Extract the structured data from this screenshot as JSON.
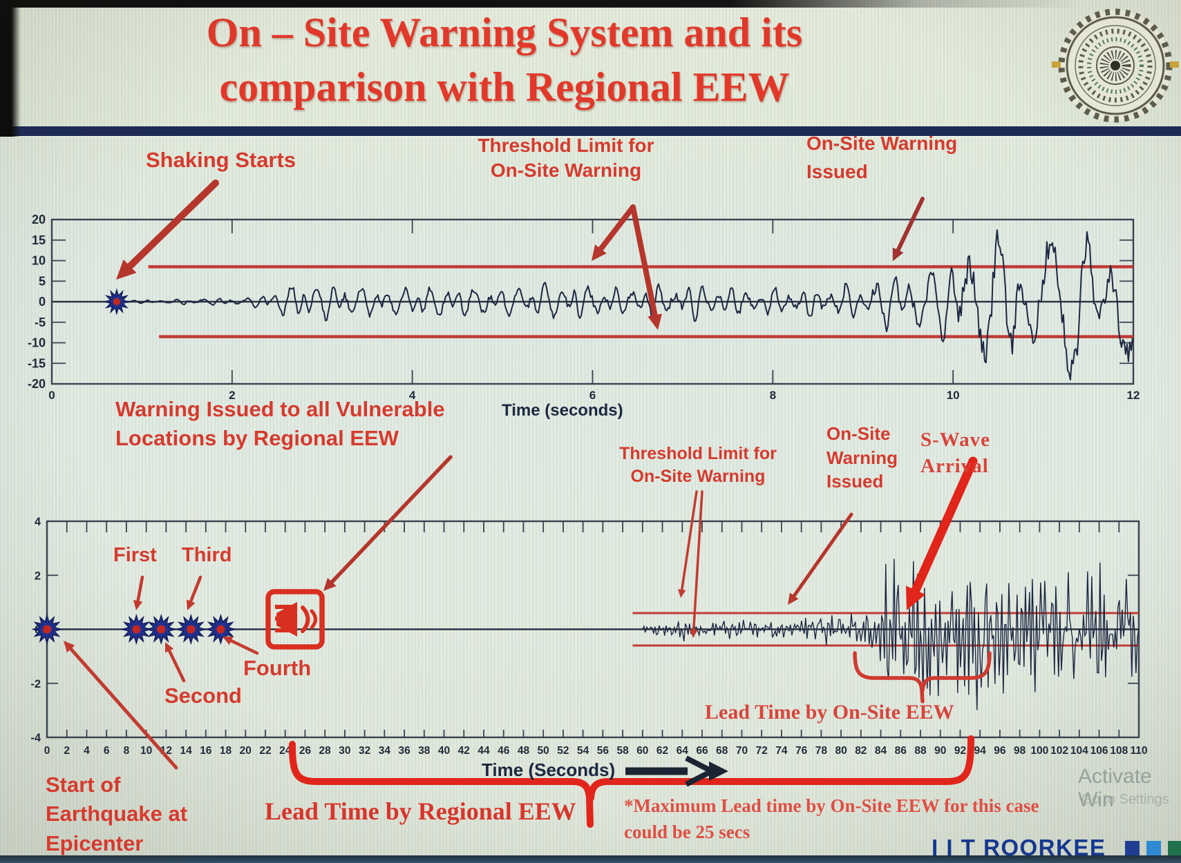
{
  "title": {
    "line1": "On – Site Warning System and its",
    "line2": "comparison with Regional EEW"
  },
  "logo": {
    "name": "IIT Roorkee emblem"
  },
  "colors": {
    "title_red": "#e2382a",
    "annotation_red": "#d63a2e",
    "serif_red": "#d8443c",
    "threshold_red": "#c13b36",
    "bright_red": "#e1251b",
    "arrow_dark_red": "#aa372e",
    "waveform_navy": "#1c2742",
    "marker_blue": "#20318f",
    "marker_center_red": "#c4271f",
    "axis_navy": "#1e2a38",
    "brand_navy": "#16388f",
    "brand_squares": [
      "#1f3e92",
      "#2e8ad2",
      "#20714b"
    ]
  },
  "chart1": {
    "shaking": "Shaking Starts",
    "threshold_line1": "Threshold Limit for",
    "threshold_line2": "On-Site Warning",
    "issued_line1": "On-Site Warning",
    "issued_line2": "Issued",
    "xlabel": "Time (seconds)"
  },
  "chart2": {
    "vuln_line1": "Warning Issued to all Vulnerable",
    "vuln_line2": "Locations by Regional EEW",
    "first": "First",
    "second": "Second",
    "third": "Third",
    "fourth": "Fourth",
    "threshold_line1": "Threshold Limit for",
    "threshold_line2": "On-Site Warning",
    "issued_line1": "On-Site",
    "issued_line2": "Warning",
    "issued_line3": "Issued",
    "swave_line1": "S-Wave",
    "swave_line2": "Arrival",
    "lead_onsite": "Lead Time by On-Site EEW",
    "lead_regional": "Lead Time by Regional EEW",
    "maximum_line1": "*Maximum Lead time by On-Site EEW for this case",
    "maximum_line2": "could be 25 secs",
    "start_line1": "Start of",
    "start_line2": "Earthquake at",
    "start_line3": "Epicenter",
    "xlabel": "Time (Seconds)"
  },
  "footer": {
    "brand": "I I T ROORKEE",
    "watermark_line1": "Activate Win",
    "watermark_line2": "Go to Settings"
  },
  "chart_data": [
    {
      "type": "line",
      "title": "",
      "xlabel": "Time (seconds)",
      "ylabel": "",
      "xlim": [
        0,
        12
      ],
      "xtick_step": 2,
      "ylim": [
        -20,
        20
      ],
      "ytick_step": 5,
      "grid": false,
      "threshold_upper": 8.5,
      "threshold_lower": -8.5,
      "threshold_start_x_upper": 1.07,
      "threshold_start_x_lower": 1.19,
      "shaking_starts_x": 0.72,
      "onsite_warning_issued_x": 9.3,
      "amplitude_envelope": [
        [
          0.78,
          0.3
        ],
        [
          1.6,
          0.8
        ],
        [
          2.2,
          1.0
        ],
        [
          2.6,
          4.0
        ],
        [
          3.1,
          4.2
        ],
        [
          3.7,
          2.8
        ],
        [
          4.3,
          3.5
        ],
        [
          5.1,
          3.2
        ],
        [
          5.7,
          4.5
        ],
        [
          6.3,
          3.5
        ],
        [
          7.1,
          4.8
        ],
        [
          7.7,
          3.6
        ],
        [
          8.3,
          4.3
        ],
        [
          8.9,
          4.2
        ],
        [
          9.2,
          6.0
        ],
        [
          9.5,
          9.5
        ],
        [
          9.8,
          8.0
        ],
        [
          10.1,
          14
        ],
        [
          10.5,
          18
        ],
        [
          10.8,
          12.5
        ],
        [
          11.1,
          17
        ],
        [
          11.4,
          18
        ],
        [
          11.7,
          14
        ],
        [
          12,
          15.5
        ]
      ]
    },
    {
      "type": "line",
      "title": "",
      "xlabel": "Time (Seconds)",
      "ylabel": "",
      "xlim": [
        0,
        110
      ],
      "xtick_step": 2,
      "ylim": [
        -4,
        4
      ],
      "ytick_step": 2,
      "grid": false,
      "threshold_upper": 0.6,
      "threshold_lower": -0.6,
      "threshold_start_x": 59,
      "epicenter_x": 0,
      "p_wave_detections_x": [
        9,
        11.5,
        14.5,
        17.5
      ],
      "regional_warning_issued_x": 25,
      "p_wave_start_x": 60,
      "onsite_warning_issued_x": 74.5,
      "s_wave_arrival_x": 84,
      "lead_time_onsite_span_x": [
        81.5,
        95
      ],
      "lead_time_regional_span_x": [
        24.7,
        93
      ],
      "max_lead_time_onsite_secs": 25,
      "amplitude_envelope": [
        [
          60,
          0.1
        ],
        [
          61,
          0.25
        ],
        [
          64,
          0.32
        ],
        [
          68,
          0.4
        ],
        [
          72,
          0.35
        ],
        [
          76,
          0.45
        ],
        [
          79,
          0.55
        ],
        [
          82,
          0.65
        ],
        [
          83.5,
          0.9
        ],
        [
          84.2,
          2.4
        ],
        [
          85,
          3.0
        ],
        [
          86,
          2.3
        ],
        [
          88,
          2.9
        ],
        [
          90,
          3.1
        ],
        [
          92,
          2.3
        ],
        [
          94,
          2.9
        ],
        [
          96,
          2.4
        ],
        [
          98,
          2.7
        ],
        [
          100,
          2.1
        ],
        [
          102,
          2.5
        ],
        [
          104,
          1.9
        ],
        [
          106,
          2.3
        ],
        [
          108,
          1.8
        ],
        [
          110,
          2.0
        ]
      ]
    }
  ]
}
